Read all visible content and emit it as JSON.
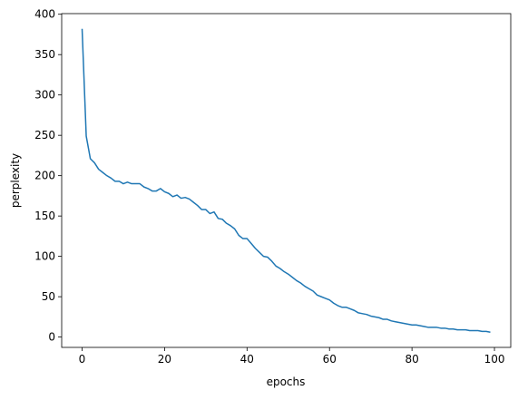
{
  "chart_data": {
    "type": "line",
    "xlabel": "epochs",
    "ylabel": "perplexity",
    "x": [
      0,
      1,
      2,
      3,
      4,
      5,
      6,
      7,
      8,
      9,
      10,
      11,
      12,
      13,
      14,
      15,
      16,
      17,
      18,
      19,
      20,
      21,
      22,
      23,
      24,
      25,
      26,
      27,
      28,
      29,
      30,
      31,
      32,
      33,
      34,
      35,
      36,
      37,
      38,
      39,
      40,
      41,
      42,
      43,
      44,
      45,
      46,
      47,
      48,
      49,
      50,
      51,
      52,
      53,
      54,
      55,
      56,
      57,
      58,
      59,
      60,
      61,
      62,
      63,
      64,
      65,
      66,
      67,
      68,
      69,
      70,
      71,
      72,
      73,
      74,
      75,
      76,
      77,
      78,
      79,
      80,
      81,
      82,
      83,
      84,
      85,
      86,
      87,
      88,
      89,
      90,
      91,
      92,
      93,
      94,
      95,
      96,
      97,
      98,
      99
    ],
    "values": [
      382,
      249,
      221,
      216,
      208,
      204,
      200,
      197,
      193,
      193,
      190,
      192,
      190,
      190,
      190,
      186,
      184,
      181,
      181,
      184,
      180,
      178,
      174,
      176,
      172,
      173,
      171,
      167,
      163,
      158,
      158,
      153,
      155,
      147,
      146,
      141,
      138,
      134,
      126,
      122,
      122,
      116,
      110,
      105,
      100,
      99,
      94,
      88,
      85,
      81,
      78,
      74,
      70,
      67,
      63,
      60,
      57,
      52,
      50,
      48,
      46,
      42,
      39,
      37,
      37,
      35,
      33,
      30,
      29,
      28,
      26,
      25,
      24,
      22,
      22,
      20,
      19,
      18,
      17,
      16,
      15,
      15,
      14,
      13,
      12,
      12,
      12,
      11,
      11,
      10,
      10,
      9,
      9,
      9,
      8,
      8,
      8,
      7,
      7,
      6
    ],
    "color": "#1f77b4",
    "xlim": [
      -4.95,
      103.95
    ],
    "xticks": [
      0,
      20,
      40,
      60,
      80,
      100
    ],
    "ylim": [
      -12.8,
      400.8
    ],
    "yticks": [
      0,
      50,
      100,
      150,
      200,
      250,
      300,
      350,
      400
    ],
    "grid": false
  }
}
